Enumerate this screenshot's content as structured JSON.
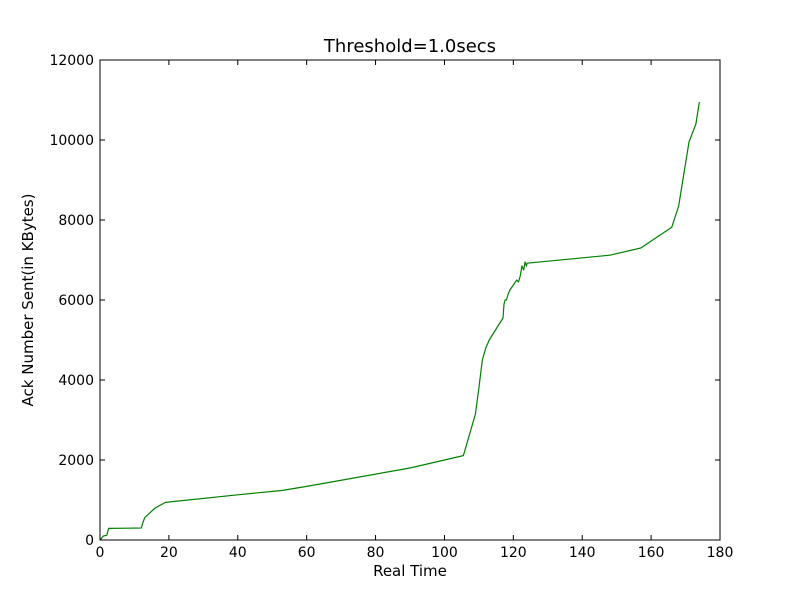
{
  "chart_data": {
    "type": "line",
    "title": "Threshold=1.0secs",
    "xlabel": "Real Time",
    "ylabel": "Ack Number Sent(in KBytes)",
    "xlim": [
      0,
      180
    ],
    "ylim": [
      0,
      12000
    ],
    "xticks": [
      0,
      20,
      40,
      60,
      80,
      100,
      120,
      140,
      160,
      180
    ],
    "yticks": [
      0,
      2000,
      4000,
      6000,
      8000,
      10000,
      12000
    ],
    "xtick_labels": [
      "0",
      "20",
      "40",
      "60",
      "80",
      "100",
      "120",
      "140",
      "160",
      "180"
    ],
    "ytick_labels": [
      "0",
      "2000",
      "4000",
      "6000",
      "8000",
      "10000",
      "12000"
    ],
    "grid": false,
    "series": [
      {
        "color": "#008000",
        "x": [
          0,
          1,
          2,
          2.5,
          12,
          12.5,
          13,
          16,
          19,
          40,
          53,
          60,
          90,
          105,
          105.5,
          109,
          110,
          111,
          112,
          113,
          117,
          117.3,
          117.6,
          118,
          118.5,
          119,
          121,
          121.5,
          122,
          122.5,
          123,
          123.4,
          123.8,
          124,
          148,
          157,
          166,
          168,
          171,
          173,
          174
        ],
        "y": [
          0,
          100,
          120,
          290,
          300,
          450,
          560,
          800,
          940,
          1130,
          1240,
          1340,
          1800,
          2100,
          2110,
          3150,
          3800,
          4500,
          4800,
          5000,
          5550,
          5900,
          6000,
          6000,
          6150,
          6250,
          6500,
          6450,
          6600,
          6850,
          6750,
          6950,
          6850,
          6920,
          7120,
          7300,
          7820,
          8350,
          9950,
          10400,
          10950
        ]
      }
    ]
  }
}
